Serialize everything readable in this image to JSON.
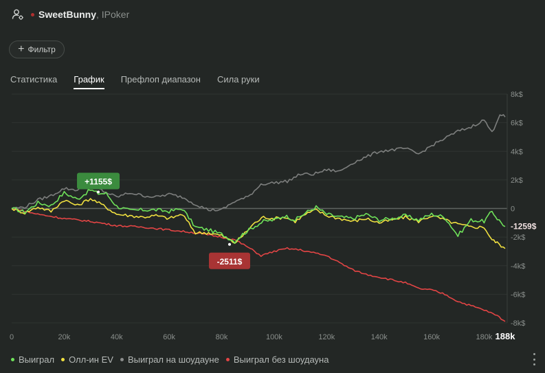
{
  "header": {
    "player_name": "SweetBunny",
    "site": ", IPoker"
  },
  "filter": {
    "label": "Фильтр"
  },
  "tabs": [
    {
      "label": "Статистика",
      "active": false
    },
    {
      "label": "График",
      "active": true
    },
    {
      "label": "Префлоп диапазон",
      "active": false
    },
    {
      "label": "Сила руки",
      "active": false
    }
  ],
  "icons": {
    "player": "user-settings-icon",
    "filter": "plus-icon",
    "more": "more-vertical-icon"
  },
  "chart_data": {
    "type": "line",
    "x_ticks": [
      "0",
      "20k",
      "40k",
      "60k",
      "80k",
      "100k",
      "120k",
      "140k",
      "160k",
      "180k"
    ],
    "x_max_label": "188k",
    "y_ticks": [
      "8k$",
      "6k$",
      "4k$",
      "2k$",
      "0",
      "-2k$",
      "-4k$",
      "-6k$",
      "-8k$"
    ],
    "xlim": [
      0,
      188000
    ],
    "ylim": [
      -8000,
      8000
    ],
    "grid": true,
    "legend_position": "bottom-left",
    "series": [
      {
        "name": "Выиграл",
        "color": "#6fe25a",
        "points": [
          [
            0,
            0
          ],
          [
            5000,
            -250
          ],
          [
            10000,
            400
          ],
          [
            15000,
            200
          ],
          [
            20000,
            1100
          ],
          [
            25000,
            650
          ],
          [
            30000,
            1300
          ],
          [
            33000,
            1050
          ],
          [
            36000,
            1050
          ],
          [
            40000,
            150
          ],
          [
            45000,
            -150
          ],
          [
            50000,
            -100
          ],
          [
            55000,
            -100
          ],
          [
            60000,
            -200
          ],
          [
            65000,
            0
          ],
          [
            70000,
            -1300
          ],
          [
            75000,
            -1500
          ],
          [
            80000,
            -1800
          ],
          [
            85000,
            -2300
          ],
          [
            88000,
            -1800
          ],
          [
            92000,
            -1300
          ],
          [
            96000,
            -900
          ],
          [
            100000,
            -800
          ],
          [
            104000,
            -500
          ],
          [
            108000,
            -800
          ],
          [
            112000,
            -300
          ],
          [
            116000,
            100
          ],
          [
            120000,
            -400
          ],
          [
            125000,
            -600
          ],
          [
            130000,
            -700
          ],
          [
            135000,
            -400
          ],
          [
            140000,
            -800
          ],
          [
            145000,
            -700
          ],
          [
            150000,
            -500
          ],
          [
            155000,
            -800
          ],
          [
            160000,
            -400
          ],
          [
            165000,
            -600
          ],
          [
            170000,
            -1900
          ],
          [
            175000,
            -800
          ],
          [
            180000,
            -900
          ],
          [
            183000,
            -200
          ],
          [
            185000,
            -700
          ],
          [
            188000,
            -1259
          ]
        ]
      },
      {
        "name": "Олл-ин EV",
        "color": "#f1e140",
        "points": [
          [
            0,
            0
          ],
          [
            5000,
            -300
          ],
          [
            10000,
            100
          ],
          [
            15000,
            -200
          ],
          [
            20000,
            600
          ],
          [
            25000,
            200
          ],
          [
            30000,
            700
          ],
          [
            35000,
            200
          ],
          [
            40000,
            -400
          ],
          [
            45000,
            -500
          ],
          [
            50000,
            -600
          ],
          [
            55000,
            -500
          ],
          [
            60000,
            -700
          ],
          [
            65000,
            -400
          ],
          [
            70000,
            -1700
          ],
          [
            75000,
            -1700
          ],
          [
            80000,
            -1900
          ],
          [
            85000,
            -2400
          ],
          [
            88000,
            -1900
          ],
          [
            92000,
            -1100
          ],
          [
            96000,
            -600
          ],
          [
            100000,
            -700
          ],
          [
            104000,
            -600
          ],
          [
            108000,
            -900
          ],
          [
            112000,
            -400
          ],
          [
            116000,
            -100
          ],
          [
            120000,
            -500
          ],
          [
            125000,
            -700
          ],
          [
            130000,
            -900
          ],
          [
            135000,
            -700
          ],
          [
            140000,
            -1000
          ],
          [
            145000,
            -800
          ],
          [
            150000,
            -600
          ],
          [
            155000,
            -900
          ],
          [
            160000,
            -500
          ],
          [
            165000,
            -800
          ],
          [
            170000,
            -1100
          ],
          [
            175000,
            -1300
          ],
          [
            180000,
            -1300
          ],
          [
            183000,
            -2200
          ],
          [
            185000,
            -2400
          ],
          [
            188000,
            -2800
          ]
        ]
      },
      {
        "name": "Выиграл на шоудауне",
        "color": "#7d7f7e",
        "points": [
          [
            0,
            0
          ],
          [
            5000,
            100
          ],
          [
            10000,
            600
          ],
          [
            15000,
            900
          ],
          [
            20000,
            1400
          ],
          [
            25000,
            1300
          ],
          [
            30000,
            1700
          ],
          [
            35000,
            1200
          ],
          [
            40000,
            800
          ],
          [
            45000,
            1100
          ],
          [
            50000,
            900
          ],
          [
            55000,
            800
          ],
          [
            60000,
            1000
          ],
          [
            65000,
            800
          ],
          [
            70000,
            300
          ],
          [
            75000,
            -100
          ],
          [
            80000,
            -100
          ],
          [
            85000,
            500
          ],
          [
            90000,
            800
          ],
          [
            95000,
            1700
          ],
          [
            100000,
            1800
          ],
          [
            105000,
            1900
          ],
          [
            110000,
            2400
          ],
          [
            115000,
            2400
          ],
          [
            120000,
            2700
          ],
          [
            125000,
            2600
          ],
          [
            130000,
            3200
          ],
          [
            135000,
            3600
          ],
          [
            140000,
            4000
          ],
          [
            145000,
            4100
          ],
          [
            150000,
            4200
          ],
          [
            155000,
            3800
          ],
          [
            160000,
            4400
          ],
          [
            165000,
            4900
          ],
          [
            170000,
            5400
          ],
          [
            175000,
            5700
          ],
          [
            180000,
            6200
          ],
          [
            183000,
            5300
          ],
          [
            186000,
            6600
          ],
          [
            188000,
            6400
          ]
        ]
      },
      {
        "name": "Выиграл без шоудауна",
        "color": "#e44545",
        "points": [
          [
            0,
            0
          ],
          [
            10000,
            -400
          ],
          [
            20000,
            -700
          ],
          [
            30000,
            -900
          ],
          [
            40000,
            -1200
          ],
          [
            50000,
            -1300
          ],
          [
            60000,
            -1500
          ],
          [
            70000,
            -1700
          ],
          [
            80000,
            -2000
          ],
          [
            85000,
            -2200
          ],
          [
            90000,
            -2700
          ],
          [
            95000,
            -3300
          ],
          [
            100000,
            -3000
          ],
          [
            105000,
            -2800
          ],
          [
            110000,
            -2900
          ],
          [
            115000,
            -3100
          ],
          [
            120000,
            -3300
          ],
          [
            125000,
            -3800
          ],
          [
            130000,
            -4300
          ],
          [
            135000,
            -4600
          ],
          [
            140000,
            -4800
          ],
          [
            145000,
            -5000
          ],
          [
            150000,
            -5200
          ],
          [
            155000,
            -5600
          ],
          [
            160000,
            -5700
          ],
          [
            165000,
            -6000
          ],
          [
            170000,
            -6500
          ],
          [
            175000,
            -6800
          ],
          [
            180000,
            -7100
          ],
          [
            185000,
            -7500
          ],
          [
            188000,
            -7900
          ]
        ]
      }
    ],
    "annotations": [
      {
        "text": "+1155$",
        "x": 33000,
        "y": 1155,
        "color": "#3b8b3e"
      },
      {
        "text": "-2511$",
        "x": 83000,
        "y": -2511,
        "color": "#a83434"
      },
      {
        "text": "-1259$",
        "x": 188000,
        "y": -1259
      }
    ]
  }
}
